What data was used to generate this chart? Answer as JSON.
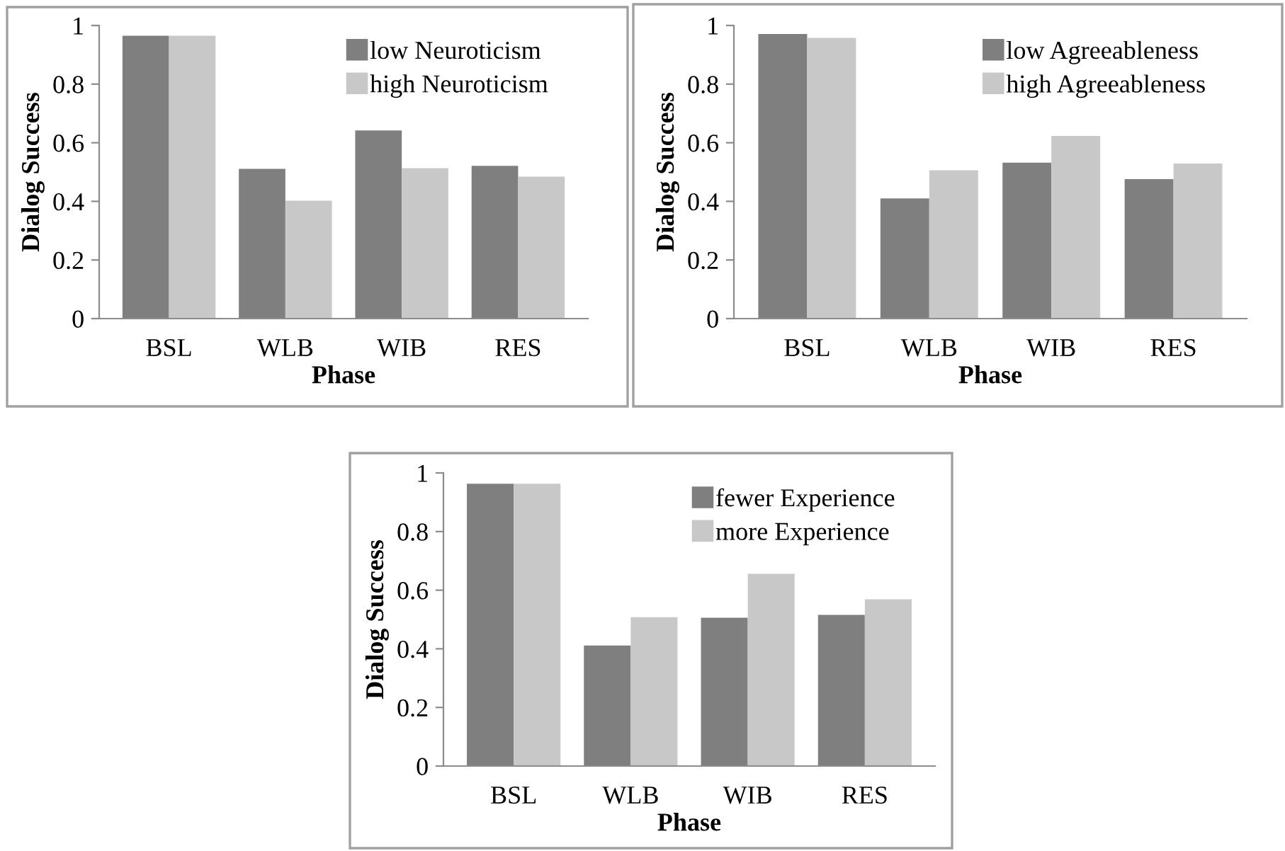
{
  "chart_data": [
    {
      "type": "bar",
      "xlabel": "Phase",
      "ylabel": "Dialog Success",
      "categories": [
        "BSL",
        "WLB",
        "WIB",
        "RES"
      ],
      "ylim": [
        0,
        1
      ],
      "yticks": [
        0,
        0.2,
        0.4,
        0.6,
        0.8,
        1
      ],
      "grid": false,
      "legend": "top right",
      "series": [
        {
          "name": "low Neuroticism",
          "color": "#7f7f7f",
          "values": [
            0.965,
            0.511,
            0.642,
            0.521
          ]
        },
        {
          "name": "high Neuroticism",
          "color": "#c8c8c8",
          "values": [
            0.965,
            0.402,
            0.513,
            0.484
          ]
        }
      ]
    },
    {
      "type": "bar",
      "xlabel": "Phase",
      "ylabel": "Dialog Success",
      "categories": [
        "BSL",
        "WLB",
        "WIB",
        "RES"
      ],
      "ylim": [
        0,
        1
      ],
      "yticks": [
        0,
        0.2,
        0.4,
        0.6,
        0.8,
        1
      ],
      "grid": false,
      "legend": "top right",
      "series": [
        {
          "name": "low Agreeableness",
          "color": "#7f7f7f",
          "values": [
            0.971,
            0.41,
            0.532,
            0.476
          ]
        },
        {
          "name": "high Agreeableness",
          "color": "#c8c8c8",
          "values": [
            0.958,
            0.506,
            0.623,
            0.529
          ]
        }
      ]
    },
    {
      "type": "bar",
      "xlabel": "Phase",
      "ylabel": "Dialog Success",
      "categories": [
        "BSL",
        "WLB",
        "WIB",
        "RES"
      ],
      "ylim": [
        0,
        1
      ],
      "yticks": [
        0,
        0.2,
        0.4,
        0.6,
        0.8,
        1
      ],
      "grid": false,
      "legend": "top right",
      "series": [
        {
          "name": "fewer Experience",
          "color": "#7f7f7f",
          "values": [
            0.963,
            0.411,
            0.506,
            0.516
          ]
        },
        {
          "name": "more Experience",
          "color": "#c8c8c8",
          "values": [
            0.963,
            0.508,
            0.656,
            0.569
          ]
        }
      ]
    }
  ]
}
